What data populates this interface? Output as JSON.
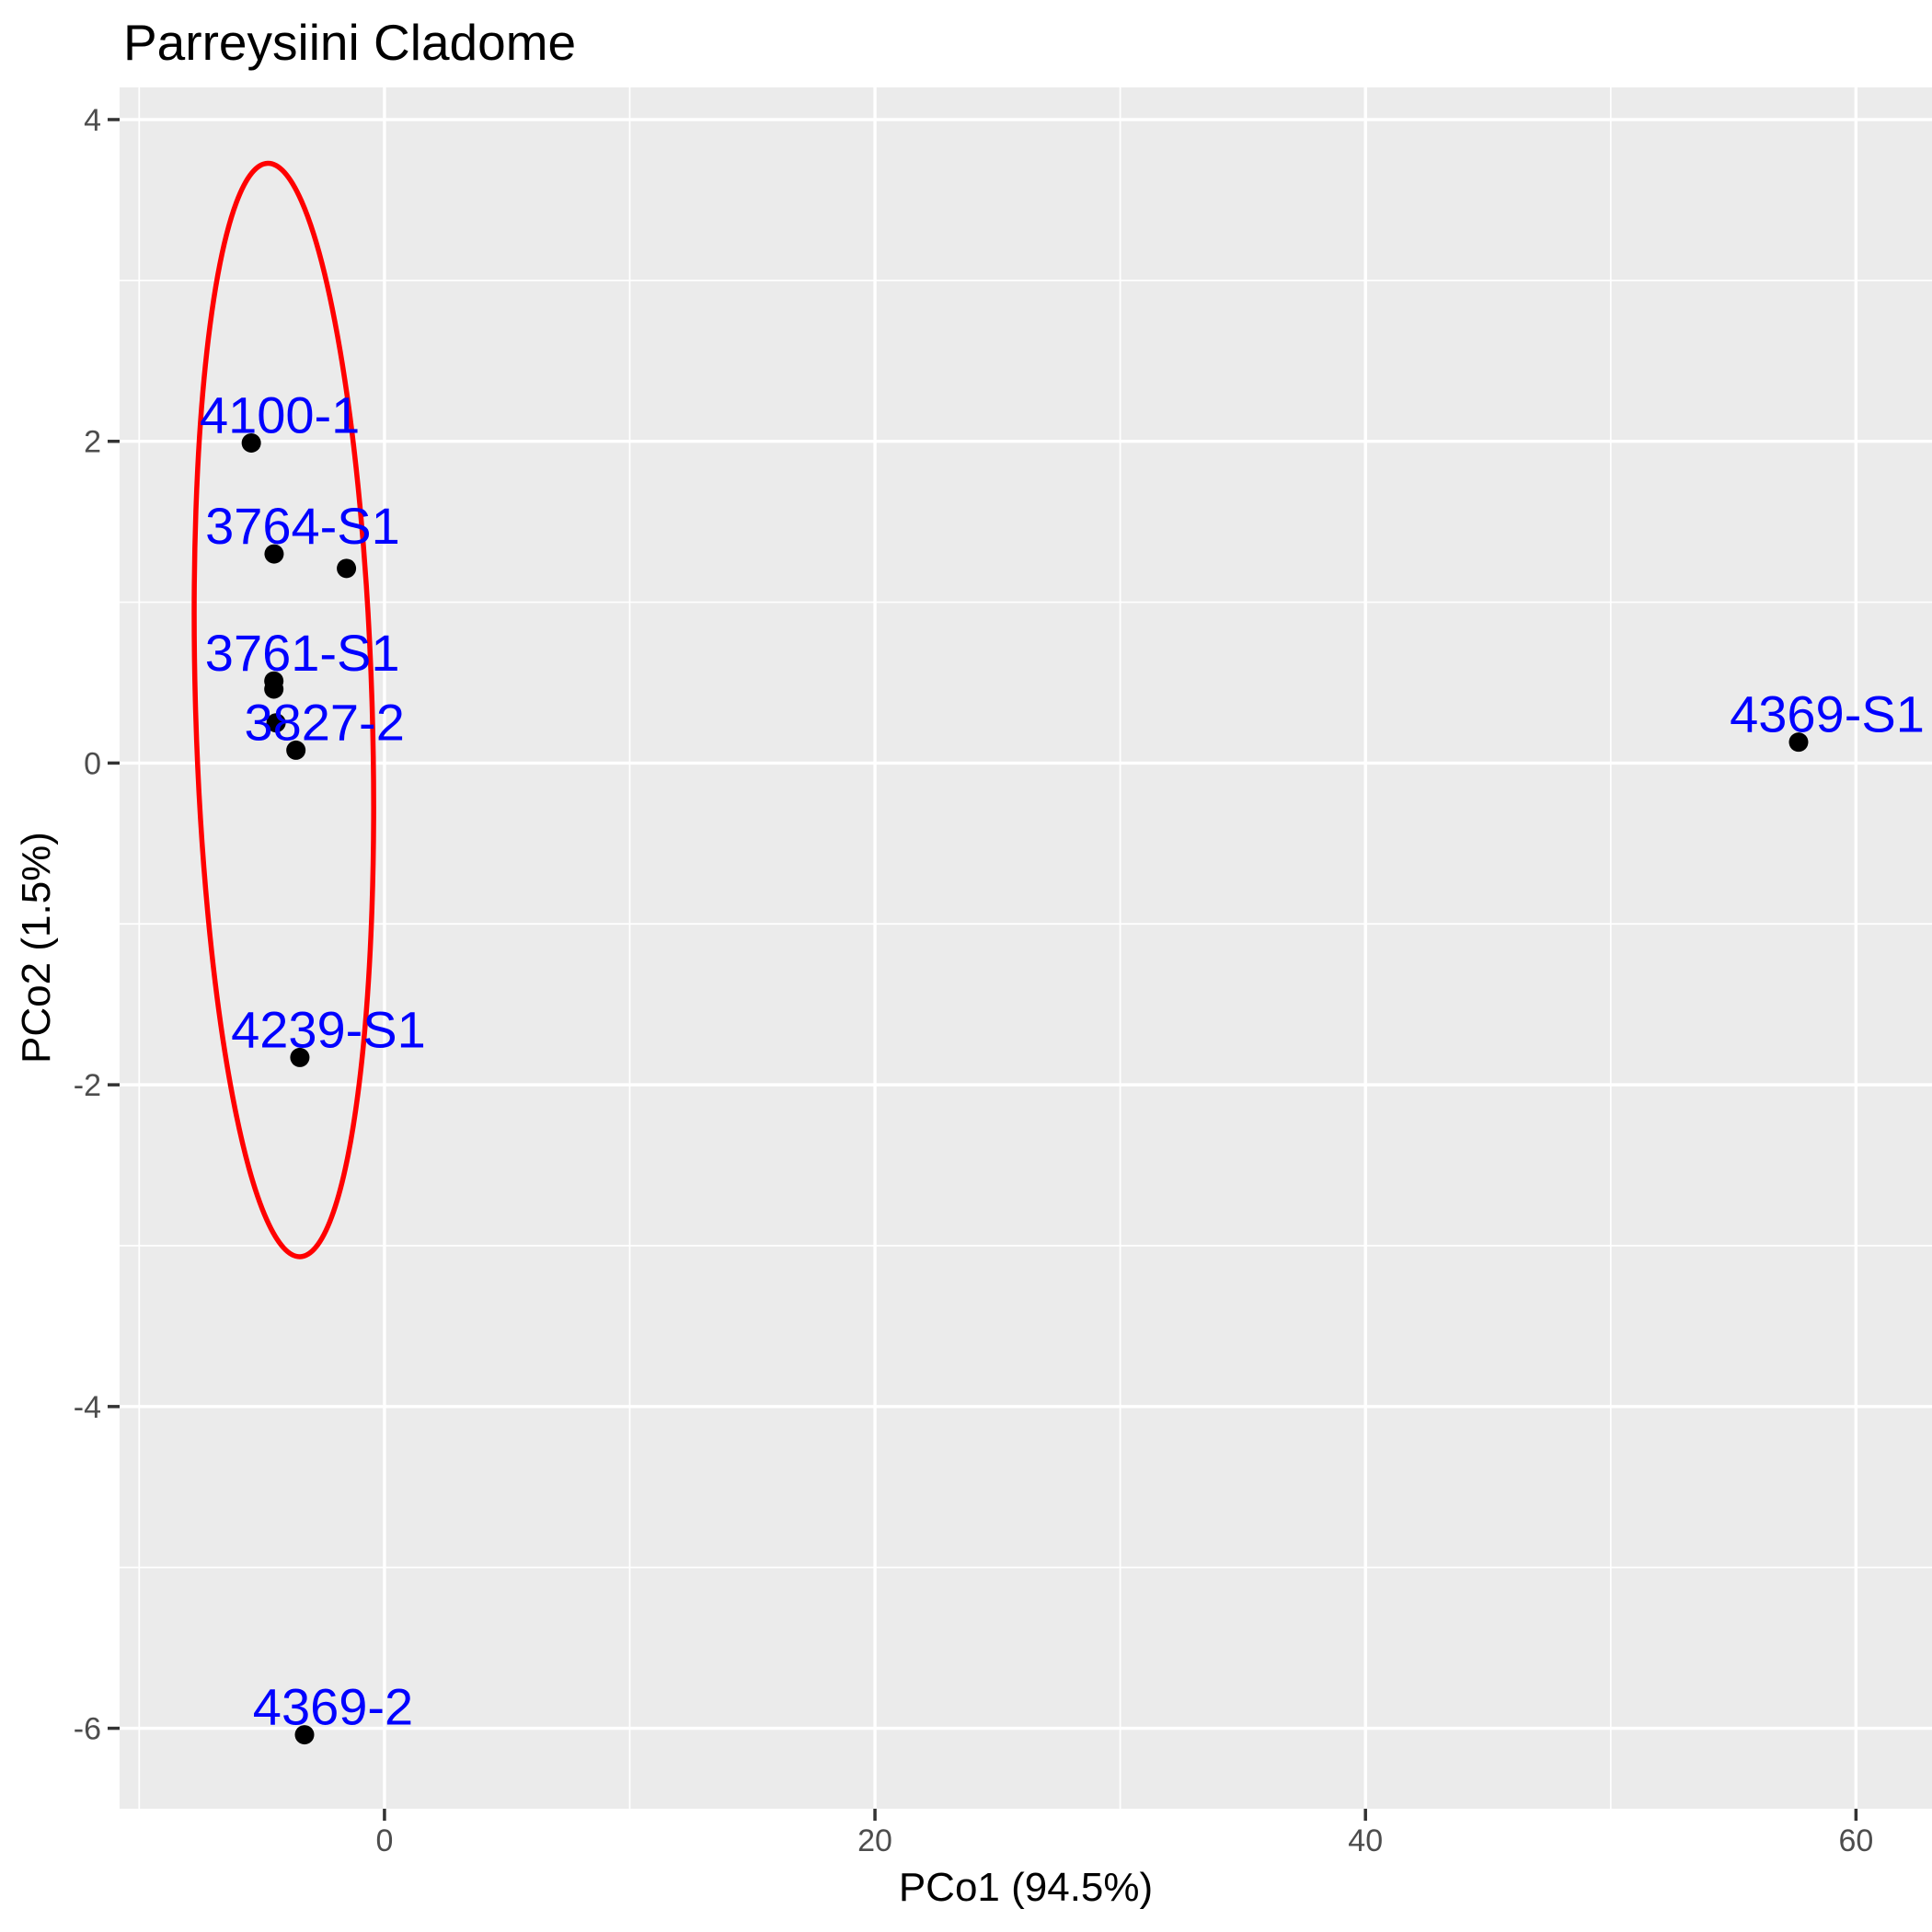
{
  "title": "Parreysiini Cladome",
  "axes": {
    "x": {
      "title": "PCo1 (94.5%)",
      "tick_labels": [
        "0",
        "20",
        "40",
        "60"
      ]
    },
    "y": {
      "title": "PCo2 (1.5%)",
      "tick_labels": [
        "4",
        "2",
        "0",
        "-2",
        "-4",
        "-6"
      ]
    }
  },
  "chart_data": {
    "type": "scatter",
    "title": "Parreysiini Cladome",
    "xlabel": "PCo1 (94.5%)",
    "ylabel": "PCo2 (1.5%)",
    "xlim": [
      -10.8,
      63.1
    ],
    "ylim": [
      -6.5,
      4.2
    ],
    "x_ticks": [
      0,
      20,
      40,
      60
    ],
    "y_ticks": [
      4,
      2,
      0,
      -2,
      -4,
      -6
    ],
    "x_minor_gridlines": [
      -10,
      10,
      30,
      50
    ],
    "y_minor_gridlines": [
      3,
      1,
      -1,
      -3,
      -5
    ],
    "grid": true,
    "legend": "none",
    "points": [
      {
        "label": "4100-1",
        "x": -5.43,
        "y": 1.99
      },
      {
        "label": "3764-S1",
        "x": -4.5,
        "y": 1.3
      },
      {
        "label": "",
        "x": -1.55,
        "y": 1.21
      },
      {
        "label": "3761-S1",
        "x": -4.51,
        "y": 0.51
      },
      {
        "label": "",
        "x": -4.51,
        "y": 0.46
      },
      {
        "label": "",
        "x": -4.42,
        "y": 0.25
      },
      {
        "label": "3827-2",
        "x": -3.61,
        "y": 0.08
      },
      {
        "label": "4239-S1",
        "x": -3.45,
        "y": -1.83
      },
      {
        "label": "4369-2",
        "x": -3.26,
        "y": -6.04
      },
      {
        "label": "4369-S1",
        "x": 57.66,
        "y": 0.13
      }
    ],
    "ellipse": {
      "cx": -4.1,
      "cy": 0.33,
      "rx": 3.6,
      "ry": 3.4,
      "tilt_deg": -1.7
    }
  },
  "colors": {
    "panel_bg": "#EBEBEB",
    "gridline": "#FFFFFF",
    "point": "#000000",
    "point_label": "#0000FF",
    "ellipse": "#FF0000",
    "tick_text": "#4D4D4D",
    "tick_mark": "#333333",
    "title_text": "#000000"
  }
}
